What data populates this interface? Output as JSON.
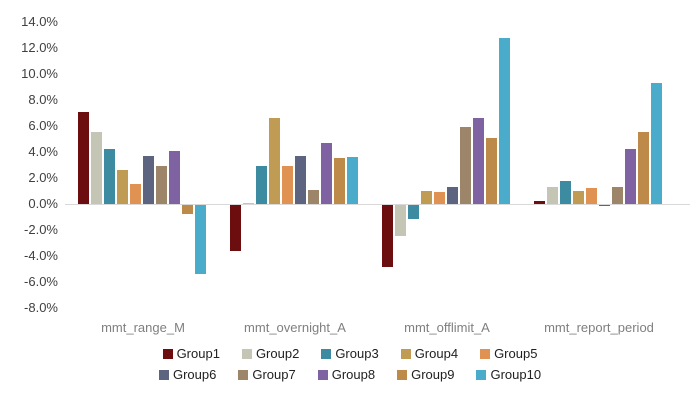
{
  "chart_data": {
    "type": "bar",
    "title": "",
    "categories": [
      "mmt_range_M",
      "mmt_overnight_A",
      "mmt_offlimit_A",
      "mmt_report_period"
    ],
    "series": [
      {
        "name": "Group1",
        "color": "#6C0E10",
        "values": [
          7.1,
          -3.5,
          -4.8,
          0.2
        ]
      },
      {
        "name": "Group2",
        "color": "#C5C5B6",
        "values": [
          5.5,
          0.1,
          -2.4,
          1.3
        ]
      },
      {
        "name": "Group3",
        "color": "#3D8BA0",
        "values": [
          4.2,
          2.9,
          -1.1,
          1.8
        ]
      },
      {
        "name": "Group4",
        "color": "#BF9B53",
        "values": [
          2.6,
          6.6,
          1.0,
          1.0
        ]
      },
      {
        "name": "Group5",
        "color": "#E09253",
        "values": [
          1.5,
          2.9,
          0.9,
          1.2
        ]
      },
      {
        "name": "Group6",
        "color": "#5C6480",
        "values": [
          3.7,
          3.7,
          1.3,
          -0.1
        ]
      },
      {
        "name": "Group7",
        "color": "#9D8569",
        "values": [
          2.9,
          1.1,
          5.9,
          1.3
        ]
      },
      {
        "name": "Group8",
        "color": "#7F62A2",
        "values": [
          4.1,
          4.7,
          6.6,
          4.2
        ]
      },
      {
        "name": "Group9",
        "color": "#BE8A4A",
        "values": [
          -0.7,
          3.5,
          5.1,
          5.5
        ]
      },
      {
        "name": "Group10",
        "color": "#4AABCB",
        "values": [
          -5.3,
          3.6,
          12.8,
          9.3
        ]
      }
    ],
    "ylim": [
      -8,
      14
    ],
    "ytick_step": 2,
    "ytick_labels": [
      "14.0%",
      "12.0%",
      "10.0%",
      "8.0%",
      "6.0%",
      "4.0%",
      "2.0%",
      "0.0%",
      "-2.0%",
      "-4.0%",
      "-6.0%",
      "-8.0%"
    ],
    "grid": false,
    "legend_position": "bottom",
    "legend_rows": [
      [
        "Group1",
        "Group2",
        "Group3",
        "Group4",
        "Group5"
      ],
      [
        "Group6",
        "Group7",
        "Group8",
        "Group9",
        "Group10"
      ]
    ]
  },
  "colors": {
    "background": "#FFFFFF",
    "axis_line": "#D9D9D9",
    "ytick_label": "#3F3F3F",
    "xtick_label": "#7F7F7F",
    "legend_label": "#212121"
  }
}
